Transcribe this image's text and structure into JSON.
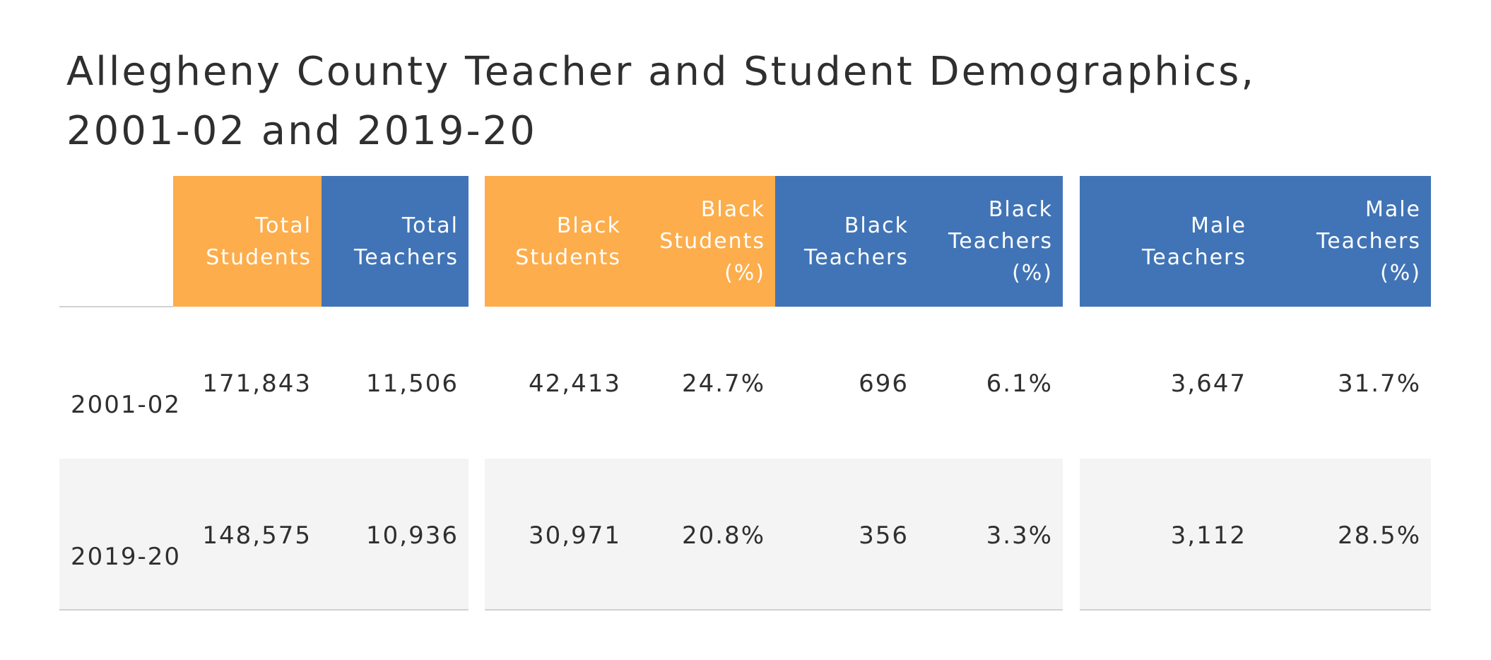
{
  "chart_data": {
    "type": "table",
    "title": "Allegheny County Teacher and Student Demographics, 2001-02 and 2019-20",
    "columns": [
      {
        "key": "total_students",
        "label": "Total Students",
        "color": "#fdad4b",
        "group": 1
      },
      {
        "key": "total_teachers",
        "label": "Total Teachers",
        "color": "#4174b6",
        "group": 1
      },
      {
        "key": "black_students",
        "label": "Black Students",
        "color": "#fdad4b",
        "group": 2
      },
      {
        "key": "black_students_pct",
        "label": "Black Students (%)",
        "color": "#fdad4b",
        "group": 2
      },
      {
        "key": "black_teachers",
        "label": "Black Teachers",
        "color": "#4174b6",
        "group": 2
      },
      {
        "key": "black_teachers_pct",
        "label": "Black Teachers (%)",
        "color": "#4174b6",
        "group": 2
      },
      {
        "key": "male_teachers",
        "label": "Male Teachers",
        "color": "#4174b6",
        "group": 3
      },
      {
        "key": "male_teachers_pct",
        "label": "Male Teachers (%)",
        "color": "#4174b6",
        "group": 3
      }
    ],
    "rows": [
      {
        "label": "2001-02",
        "values": [
          "171,843",
          "11,506",
          "42,413",
          "24.7%",
          "696",
          "6.1%",
          "3,647",
          "31.7%"
        ]
      },
      {
        "label": "2019-20",
        "values": [
          "148,575",
          "10,936",
          "30,971",
          "20.8%",
          "356",
          "3.3%",
          "3,112",
          "28.5%"
        ]
      }
    ]
  },
  "header_lines": {
    "total_students": [
      "Total",
      "Students"
    ],
    "total_teachers": [
      "Total",
      "Teachers"
    ],
    "black_students": [
      "Black",
      "Students"
    ],
    "black_students_pct": [
      "Black",
      "Students",
      "(%)"
    ],
    "black_teachers": [
      "Black",
      "Teachers"
    ],
    "black_teachers_pct": [
      "Black",
      "Teachers",
      "(%)"
    ],
    "male_teachers": [
      "Male Teachers"
    ],
    "male_teachers_pct": [
      "Male Teachers",
      "(%)"
    ]
  },
  "colors": {
    "orange": "#fdad4b",
    "blue": "#4174b6",
    "stripe": "#f4f4f4",
    "rule": "#d2d2d2",
    "text": "#2f2f2f"
  }
}
